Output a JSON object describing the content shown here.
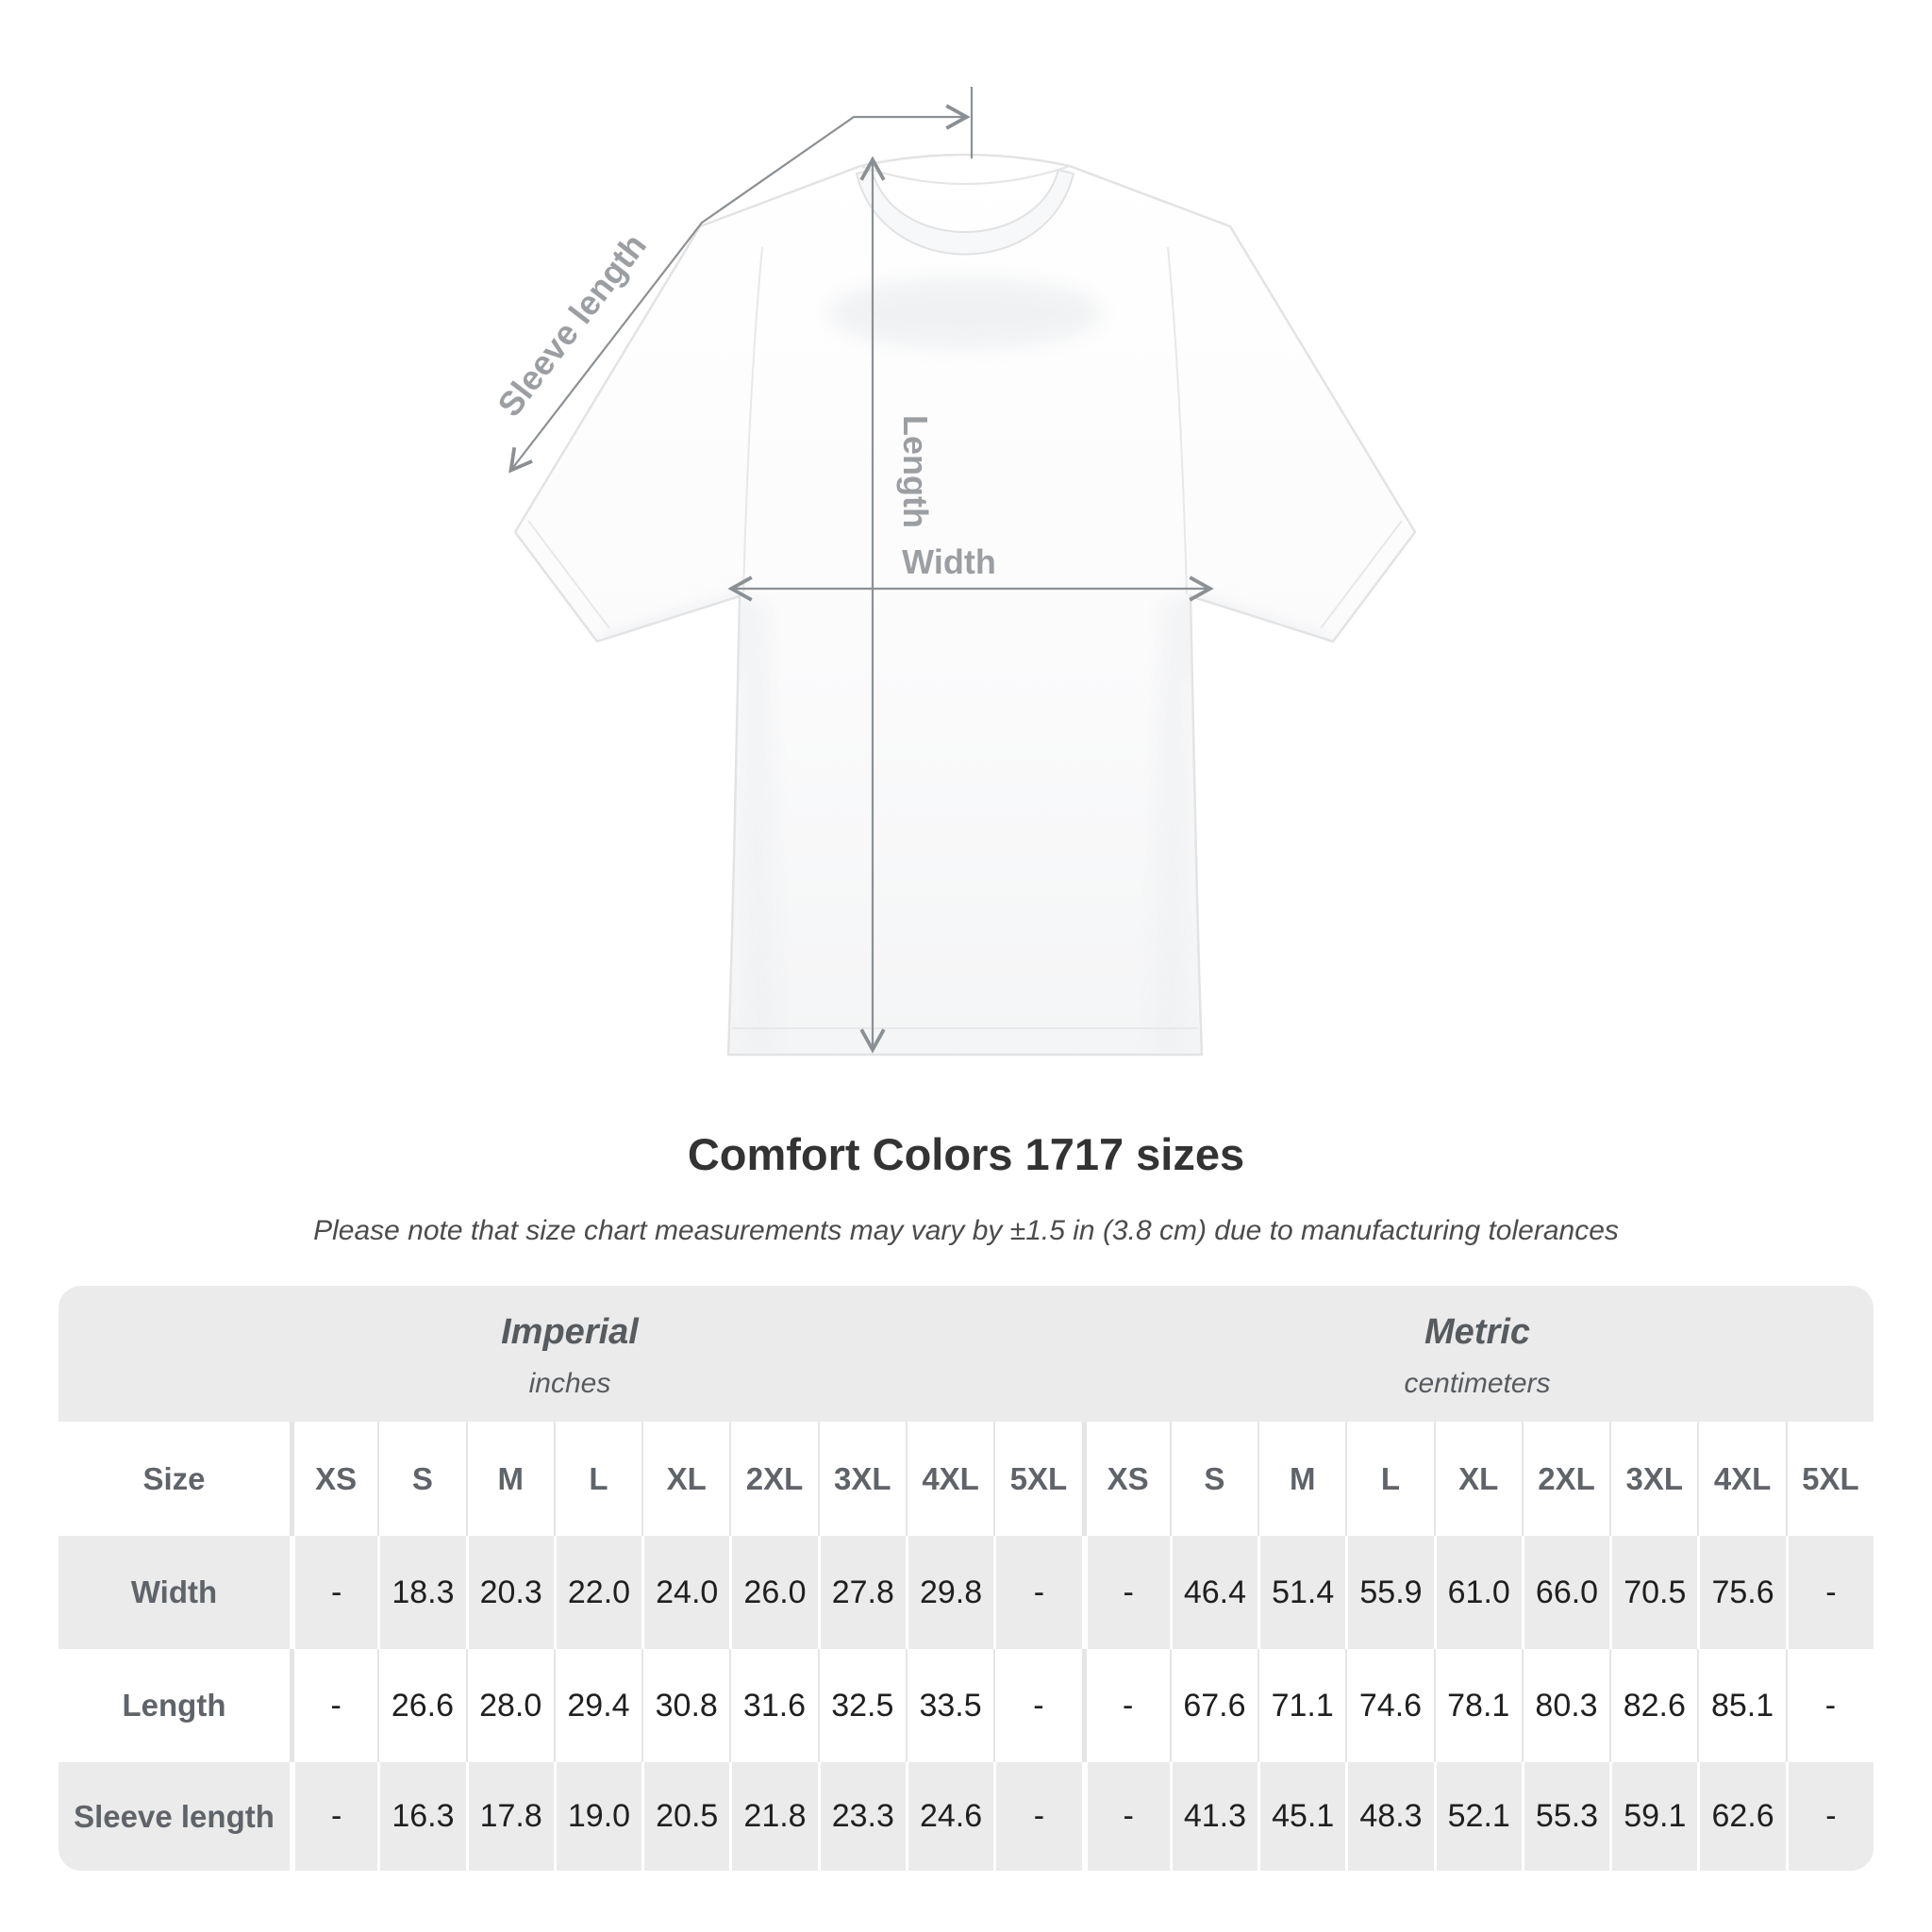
{
  "diagram": {
    "sleeve_label": "Sleeve length",
    "length_label": "Length",
    "width_label": "Width"
  },
  "title": "Comfort Colors 1717 sizes",
  "subtitle": "Please note that size chart measurements may vary by ±1.5 in (3.8 cm) due to manufacturing tolerances",
  "table": {
    "size_header": "Size",
    "unit_groups": [
      {
        "name": "Imperial",
        "unit": "inches"
      },
      {
        "name": "Metric",
        "unit": "centimeters"
      }
    ],
    "sizes": [
      "XS",
      "S",
      "M",
      "L",
      "XL",
      "2XL",
      "3XL",
      "4XL",
      "5XL"
    ],
    "rows": [
      {
        "label": "Width",
        "imperial": [
          "-",
          "18.3",
          "20.3",
          "22.0",
          "24.0",
          "26.0",
          "27.8",
          "29.8",
          "-"
        ],
        "metric": [
          "-",
          "46.4",
          "51.4",
          "55.9",
          "61.0",
          "66.0",
          "70.5",
          "75.6",
          "-"
        ]
      },
      {
        "label": "Length",
        "imperial": [
          "-",
          "26.6",
          "28.0",
          "29.4",
          "30.8",
          "31.6",
          "32.5",
          "33.5",
          "-"
        ],
        "metric": [
          "-",
          "67.6",
          "71.1",
          "74.6",
          "78.1",
          "80.3",
          "82.6",
          "85.1",
          "-"
        ]
      },
      {
        "label": "Sleeve length",
        "imperial": [
          "-",
          "16.3",
          "17.8",
          "19.0",
          "20.5",
          "21.8",
          "23.3",
          "24.6",
          "-"
        ],
        "metric": [
          "-",
          "41.3",
          "45.1",
          "48.3",
          "52.1",
          "55.3",
          "59.1",
          "62.6",
          "-"
        ]
      }
    ]
  },
  "colors": {
    "band_gray": "#ebebeb",
    "separator_light": "#e5e5e5",
    "value_text": "#1e1f21",
    "label_text": "#5f646a",
    "unit_text": "#565b60",
    "title_text": "#333333",
    "note_text": "#4c4c4c",
    "diagram_line": "#8b9094",
    "diagram_label": "#9b9fa3"
  }
}
